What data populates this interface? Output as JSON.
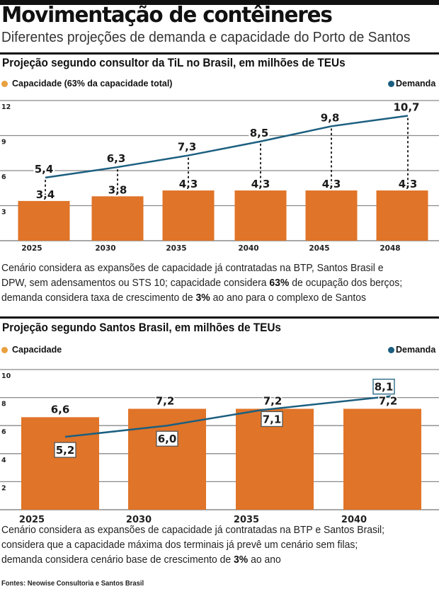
{
  "header": {
    "title": "Movimentação de contêineres",
    "subtitle": "Diferentes projeções de demanda e capacidade do Porto de Santos"
  },
  "colors": {
    "capacity_bar": "#e07428",
    "capacity_legend": "#e8a040",
    "demand_line": "#1b5f80",
    "gridline": "#8a8a8a"
  },
  "section1": {
    "title": "Projeção segundo consultor da TiL no Brasil, em milhões de TEUs",
    "legend_capacity": "Capacidade (63% da capacidade total)",
    "legend_demand": "Demanda",
    "note_parts": [
      {
        "text": "Cenário considera as expansões de capacidade já contratadas na BTP, Santos Brasil e",
        "bold": false,
        "br": true
      },
      {
        "text": "DPW, sem adensamentos ou STS 10; capacidade considera ",
        "bold": false
      },
      {
        "text": "63%",
        "bold": true
      },
      {
        "text": " de ocupação dos berços;",
        "bold": false,
        "br": true
      },
      {
        "text": "demanda considera taxa de crescimento de ",
        "bold": false
      },
      {
        "text": "3%",
        "bold": true
      },
      {
        "text": " ao ano para o complexo de Santos",
        "bold": false
      }
    ]
  },
  "section2": {
    "title": "Projeção segundo Santos Brasil, em milhões de TEUs",
    "legend_capacity": "Capacidade",
    "legend_demand": "Demanda",
    "note_parts": [
      {
        "text": "Cenário considera as expansões de capacidade já contratadas na BTP e Santos Brasil;",
        "bold": false,
        "br": true
      },
      {
        "text": "considera que a capacidade máxima dos terminais já prevê um cenário sem filas;",
        "bold": false,
        "br": true
      },
      {
        "text": "demanda considera cenário base de crescimento de ",
        "bold": false
      },
      {
        "text": "3%",
        "bold": true
      },
      {
        "text": " ao ano",
        "bold": false
      }
    ]
  },
  "source": "Fontes: Neowise Consultoria e Santos Brasil",
  "chart_data": [
    {
      "type": "bar",
      "title": "Projeção segundo consultor da TiL no Brasil, em milhões de TEUs",
      "xlabel": "",
      "ylabel": "milhões de TEUs",
      "categories": [
        "2025",
        "2030",
        "2035",
        "2040",
        "2045",
        "2048"
      ],
      "yticks": [
        3,
        6,
        9,
        12
      ],
      "ylim": [
        0,
        12
      ],
      "grid": true,
      "legend": "top",
      "series": [
        {
          "name": "Capacidade (63% da capacidade total)",
          "kind": "bar",
          "values": [
            3.4,
            3.8,
            4.3,
            4.3,
            4.3,
            4.3
          ],
          "labels": [
            "3,4",
            "3,8",
            "4,3",
            "4,3",
            "4,3",
            "4,3"
          ]
        },
        {
          "name": "Demanda",
          "kind": "line",
          "values": [
            5.4,
            6.3,
            7.3,
            8.5,
            9.8,
            10.7
          ],
          "labels": [
            "5,4",
            "6,3",
            "7,3",
            "8,5",
            "9,8",
            "10,7"
          ]
        }
      ]
    },
    {
      "type": "bar",
      "title": "Projeção segundo Santos Brasil, em milhões de TEUs",
      "xlabel": "",
      "ylabel": "milhões de TEUs",
      "categories": [
        "2025",
        "2030",
        "2035",
        "2040"
      ],
      "yticks": [
        2,
        4,
        6,
        8,
        10
      ],
      "ylim": [
        0,
        10
      ],
      "grid": true,
      "legend": "top",
      "series": [
        {
          "name": "Capacidade",
          "kind": "bar",
          "values": [
            6.6,
            7.2,
            7.2,
            7.2
          ],
          "labels": [
            "6,6",
            "7,2",
            "7,2",
            "7,2"
          ]
        },
        {
          "name": "Demanda",
          "kind": "line",
          "values": [
            5.2,
            6.0,
            7.1,
            8.1
          ],
          "labels": [
            "5,2",
            "6,0",
            "7,1",
            "8,1"
          ]
        }
      ]
    }
  ]
}
